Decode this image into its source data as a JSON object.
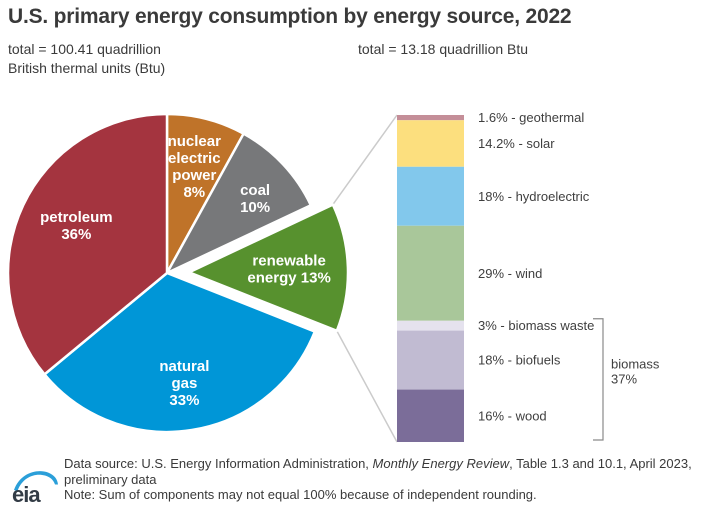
{
  "chart_data": [
    {
      "type": "pie",
      "title": "U.S. primary energy consumption by energy source, 2022",
      "total_label": [
        "total = 100.41 quadrillion",
        "British thermal units (Btu)"
      ],
      "start_at": "12-oclock",
      "direction": "clockwise",
      "label_color": "#ffffff",
      "slices": [
        {
          "id": "nuclear-electric-power",
          "name": "nuclear electric power",
          "pct": 8,
          "color": "#bf7329",
          "label_lines": [
            "nuclear",
            "electric",
            "power",
            "8%"
          ]
        },
        {
          "id": "coal",
          "name": "coal",
          "pct": 10,
          "color": "#77787a",
          "label_lines": [
            "coal",
            "10%"
          ]
        },
        {
          "id": "renewable-energy",
          "name": "renewable energy",
          "pct": 13,
          "color": "#57912e",
          "exploded": true,
          "label_lines": [
            "renewable",
            "energy 13%"
          ]
        },
        {
          "id": "natural-gas",
          "name": "natural gas",
          "pct": 33,
          "color": "#0096d7",
          "label_lines": [
            "natural",
            "gas",
            "33%"
          ]
        },
        {
          "id": "petroleum",
          "name": "petroleum",
          "pct": 36,
          "color": "#a4343f",
          "label_lines": [
            "petroleum",
            "36%"
          ]
        }
      ]
    },
    {
      "type": "bar",
      "stacked": true,
      "total_label": "total = 13.18 quadrillion Btu",
      "label_color": "#3f3f3f",
      "segments": [
        {
          "id": "geothermal",
          "label": "1.6% - geothermal",
          "pct": 1.6,
          "color": "#c48e98"
        },
        {
          "id": "solar",
          "label": "14.2% - solar",
          "pct": 14.2,
          "color": "#fcdf7e"
        },
        {
          "id": "hydroelectric",
          "label": "18% - hydroelectric",
          "pct": 18,
          "color": "#82c8ec"
        },
        {
          "id": "wind",
          "label": "29% - wind",
          "pct": 29,
          "color": "#a9c79a"
        },
        {
          "id": "biomass-waste",
          "label": "3% - biomass waste",
          "pct": 3,
          "color": "#e5e2ee"
        },
        {
          "id": "biofuels",
          "label": "18% - biofuels",
          "pct": 18,
          "color": "#c1bbd2"
        },
        {
          "id": "wood",
          "label": "16% - wood",
          "pct": 16,
          "color": "#7b6d99"
        }
      ],
      "group_bracket": {
        "label_lines": [
          "biomass",
          "37%"
        ],
        "from_id": "biomass-waste",
        "to_id": "wood"
      }
    }
  ],
  "footer": {
    "source_prefix": "Data source: U.S. Energy Information Administration, ",
    "source_italic": "Monthly Energy Review",
    "source_suffix": ", Table 1.3 and 10.1, April 2023, preliminary data",
    "note": "Note: Sum of components may not equal 100% because of independent rounding."
  },
  "logo": {
    "text": "eia"
  },
  "colors": {
    "connector_line": "#cbcbcb",
    "bracket": "#8a8a8a",
    "text": "#3a3a3a",
    "logo_swoosh": "#2b9fd9",
    "logo_text": "#333c46"
  }
}
